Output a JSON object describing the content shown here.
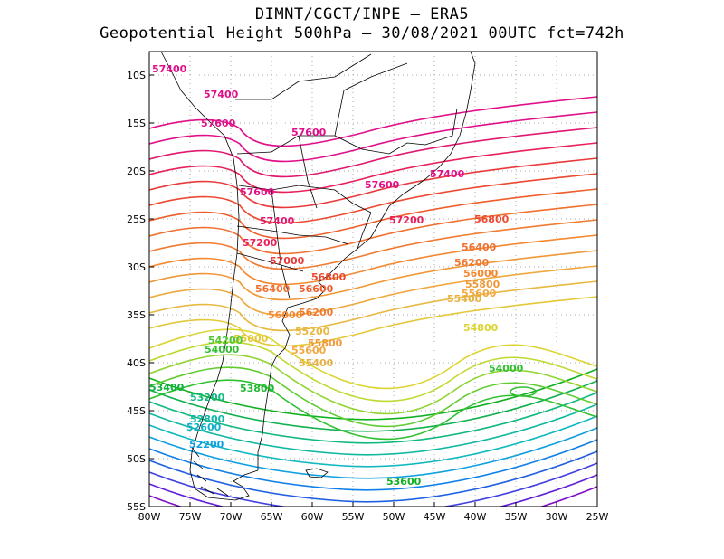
{
  "header": {
    "line1": "DIMNT/CGCT/INPE –  ERA5",
    "line2": "Geopotential Height 500hPa –  30/08/2021 00UTC fct=742h"
  },
  "axes": {
    "lon_labels": [
      "80W",
      "75W",
      "70W",
      "65W",
      "60W",
      "55W",
      "50W",
      "45W",
      "40W",
      "35W",
      "30W",
      "25W"
    ],
    "lat_labels": [
      "10S",
      "15S",
      "20S",
      "25S",
      "30S",
      "35S",
      "40S",
      "45S",
      "50S",
      "55S"
    ]
  },
  "contour_labels": [
    {
      "text": "57400",
      "color": "#e0108a"
    },
    {
      "text": "57400",
      "color": "#e0108a"
    },
    {
      "text": "57600",
      "color": "#e0108a"
    },
    {
      "text": "57600",
      "color": "#e0108a"
    },
    {
      "text": "57600",
      "color": "#e0108a"
    },
    {
      "text": "57600",
      "color": "#e0108a"
    },
    {
      "text": "57400",
      "color": "#e0108a"
    },
    {
      "text": "57400",
      "color": "#e01870"
    },
    {
      "text": "57200",
      "color": "#e8205a"
    },
    {
      "text": "57200",
      "color": "#e8205a"
    },
    {
      "text": "57000",
      "color": "#e83a3a"
    },
    {
      "text": "56800",
      "color": "#ec4a30"
    },
    {
      "text": "56800",
      "color": "#ec4a30"
    },
    {
      "text": "56600",
      "color": "#ee5e2c"
    },
    {
      "text": "56400",
      "color": "#f07030"
    },
    {
      "text": "56400",
      "color": "#f07030"
    },
    {
      "text": "56200",
      "color": "#f07a30"
    },
    {
      "text": "56200",
      "color": "#f07a30"
    },
    {
      "text": "56000",
      "color": "#f48830"
    },
    {
      "text": "56000",
      "color": "#f48830"
    },
    {
      "text": "55800",
      "color": "#f09838"
    },
    {
      "text": "55800",
      "color": "#f09838"
    },
    {
      "text": "55600",
      "color": "#f0a840"
    },
    {
      "text": "55600",
      "color": "#f0a840"
    },
    {
      "text": "55400",
      "color": "#e8b040"
    },
    {
      "text": "55400",
      "color": "#e8b040"
    },
    {
      "text": "55200",
      "color": "#e8b840"
    },
    {
      "text": "55000",
      "color": "#e4c838"
    },
    {
      "text": "54800",
      "color": "#dcd430"
    },
    {
      "text": "54000",
      "color": "#30c030"
    },
    {
      "text": "54000",
      "color": "#30c030"
    },
    {
      "text": "54200",
      "color": "#50c830"
    },
    {
      "text": "53800",
      "color": "#20b830"
    },
    {
      "text": "53600",
      "color": "#10b020"
    },
    {
      "text": "53400",
      "color": "#10b040"
    },
    {
      "text": "53200",
      "color": "#10b880"
    },
    {
      "text": "52800",
      "color": "#10b8a8"
    },
    {
      "text": "52600",
      "color": "#10b0c8"
    },
    {
      "text": "52200",
      "color": "#10a0e0"
    }
  ],
  "contour_levels": [
    {
      "color": "#8010c8"
    },
    {
      "color": "#6020d8"
    },
    {
      "color": "#4040e0"
    },
    {
      "color": "#2060e0"
    },
    {
      "color": "#1080e8"
    },
    {
      "color": "#10a0e0"
    },
    {
      "color": "#10b8c0"
    },
    {
      "color": "#10b8a0"
    },
    {
      "color": "#10b880"
    },
    {
      "color": "#10b050"
    },
    {
      "color": "#10b020"
    },
    {
      "color": "#30c030"
    },
    {
      "color": "#60cc30"
    },
    {
      "color": "#90d430"
    },
    {
      "color": "#c0d830"
    },
    {
      "color": "#dcd430"
    },
    {
      "color": "#e4c838"
    },
    {
      "color": "#e8b840"
    },
    {
      "color": "#f0a840"
    },
    {
      "color": "#f09838"
    },
    {
      "color": "#f48830"
    },
    {
      "color": "#f07a30"
    },
    {
      "color": "#f07030"
    },
    {
      "color": "#ee5e2c"
    },
    {
      "color": "#ec4a30"
    },
    {
      "color": "#e83a3a"
    },
    {
      "color": "#e8205a"
    },
    {
      "color": "#e01870"
    },
    {
      "color": "#e0108a"
    },
    {
      "color": "#e0108a"
    }
  ]
}
